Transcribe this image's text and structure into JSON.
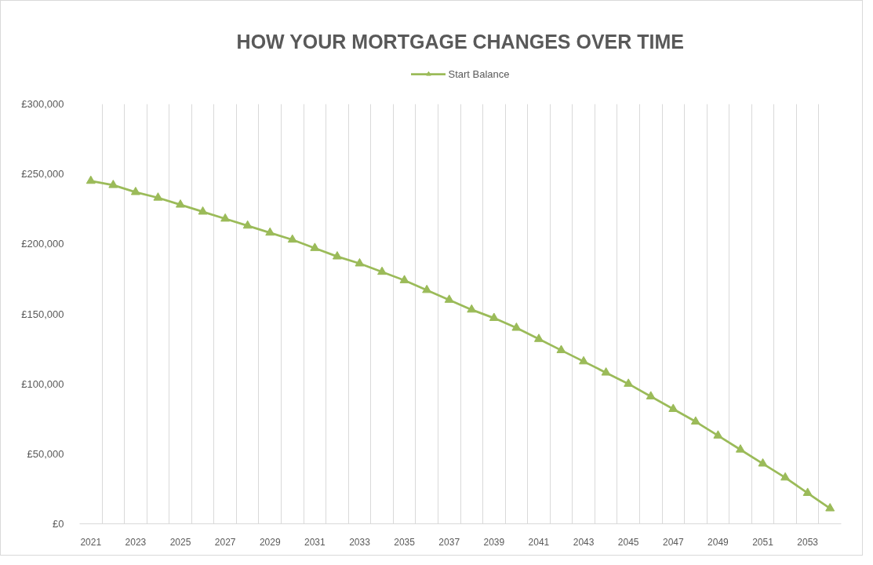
{
  "chart_data": {
    "type": "line",
    "title": "HOW YOUR MORTGAGE CHANGES OVER TIME",
    "categories": [
      "2021",
      null,
      "2023",
      null,
      "2025",
      null,
      "2027",
      null,
      "2029",
      null,
      "2031",
      null,
      "2033",
      null,
      "2035",
      null,
      "2037",
      null,
      "2039",
      null,
      "2041",
      null,
      "2043",
      null,
      "2045",
      null,
      "2047",
      null,
      "2049",
      null,
      "2051",
      null,
      "2053",
      null
    ],
    "series": [
      {
        "name": "Start Balance",
        "color": "#9bbb59",
        "values": [
          245000,
          242000,
          237000,
          233000,
          228000,
          223000,
          218000,
          213000,
          208000,
          203000,
          197000,
          191000,
          186000,
          180000,
          174000,
          167000,
          160000,
          153000,
          147000,
          140000,
          132000,
          124000,
          116000,
          108000,
          100000,
          91000,
          82000,
          73000,
          63000,
          53000,
          43000,
          33000,
          22000,
          11000
        ]
      }
    ],
    "ylim": [
      0,
      300000
    ],
    "yticks": [
      {
        "value": 0,
        "label": "£0"
      },
      {
        "value": 50000,
        "label": "£50,000"
      },
      {
        "value": 100000,
        "label": "£100,000"
      },
      {
        "value": 150000,
        "label": "£150,000"
      },
      {
        "value": 200000,
        "label": "£200,000"
      },
      {
        "value": 250000,
        "label": "£250,000"
      },
      {
        "value": 300000,
        "label": "£300,000"
      }
    ],
    "grid": "x",
    "legend": "top",
    "marker": "triangle"
  }
}
